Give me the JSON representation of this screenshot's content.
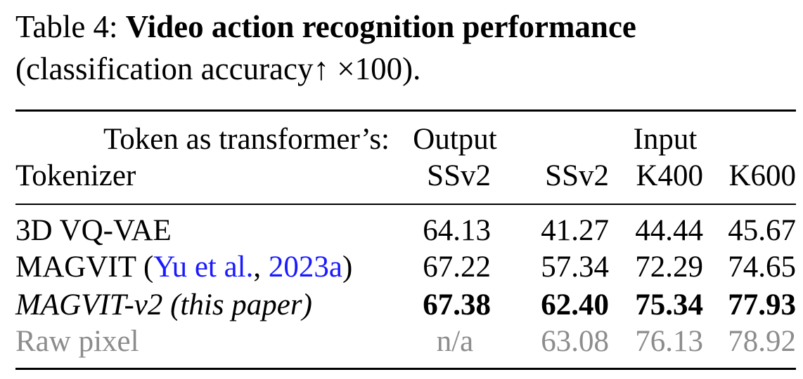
{
  "caption": {
    "label": "Table 4:",
    "title": "Video action recognition performance",
    "subtitle": "(classification accuracy↑ ×100)."
  },
  "table": {
    "header": {
      "token_label": "Token as transformer’s:",
      "tokenizer_label": "Tokenizer",
      "output_label": "Output",
      "input_label": "Input",
      "columns": [
        "SSv2",
        "SSv2",
        "K400",
        "K600"
      ]
    },
    "rows": [
      {
        "name": "3D VQ-VAE",
        "values": [
          "64.13",
          "41.27",
          "44.44",
          "45.67"
        ]
      },
      {
        "name": "MAGVIT",
        "citation_open": "(",
        "citation_authors": "Yu et al.",
        "citation_sep": ", ",
        "citation_year": "2023a",
        "citation_close": ")",
        "values": [
          "67.22",
          "57.34",
          "72.29",
          "74.65"
        ]
      },
      {
        "name": "MAGVIT-v2 (this paper)",
        "values": [
          "67.38",
          "62.40",
          "75.34",
          "77.93"
        ]
      },
      {
        "name": "Raw pixel",
        "values": [
          "n/a",
          "63.08",
          "76.13",
          "78.92"
        ]
      }
    ]
  },
  "colors": {
    "text": "#000000",
    "citation": "#1a1aff",
    "muted": "#8c8c8c"
  }
}
